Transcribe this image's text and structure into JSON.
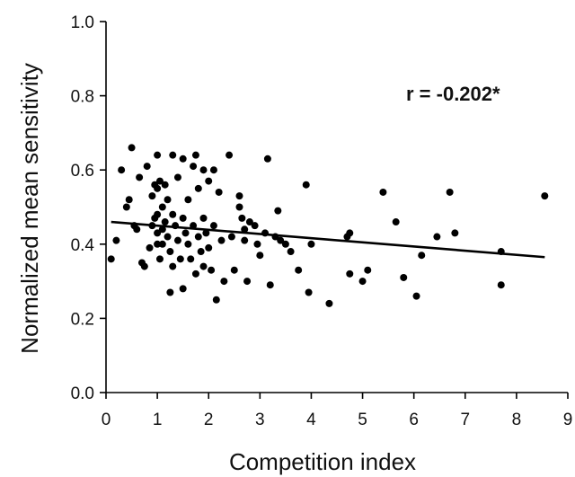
{
  "chart_data": {
    "type": "scatter",
    "title": "",
    "xlabel": "Competition index",
    "ylabel": "Normalized mean sensitivity",
    "xlim": [
      0,
      9
    ],
    "ylim": [
      0.0,
      1.0
    ],
    "x_ticks": [
      "0",
      "1",
      "2",
      "3",
      "4",
      "5",
      "6",
      "7",
      "8",
      "9"
    ],
    "y_ticks": [
      "0.0",
      "0.2",
      "0.4",
      "0.6",
      "0.8",
      "1.0"
    ],
    "grid": false,
    "annotation": "r = -0.202*",
    "series": [
      {
        "points": [
          [
            0.1,
            0.36
          ],
          [
            0.2,
            0.41
          ],
          [
            0.3,
            0.6
          ],
          [
            0.4,
            0.5
          ],
          [
            0.45,
            0.52
          ],
          [
            0.5,
            0.66
          ],
          [
            0.55,
            0.45
          ],
          [
            0.6,
            0.44
          ],
          [
            0.65,
            0.58
          ],
          [
            0.7,
            0.35
          ],
          [
            0.75,
            0.34
          ],
          [
            0.8,
            0.61
          ],
          [
            0.85,
            0.39
          ],
          [
            0.9,
            0.53
          ],
          [
            0.9,
            0.45
          ],
          [
            0.95,
            0.56
          ],
          [
            0.95,
            0.47
          ],
          [
            1.0,
            0.64
          ],
          [
            1.0,
            0.55
          ],
          [
            1.0,
            0.48
          ],
          [
            1.0,
            0.43
          ],
          [
            1.0,
            0.4
          ],
          [
            1.05,
            0.36
          ],
          [
            1.05,
            0.57
          ],
          [
            1.1,
            0.5
          ],
          [
            1.1,
            0.44
          ],
          [
            1.1,
            0.4
          ],
          [
            1.15,
            0.56
          ],
          [
            1.15,
            0.46
          ],
          [
            1.2,
            0.52
          ],
          [
            1.2,
            0.42
          ],
          [
            1.25,
            0.38
          ],
          [
            1.25,
            0.27
          ],
          [
            1.3,
            0.64
          ],
          [
            1.3,
            0.48
          ],
          [
            1.3,
            0.34
          ],
          [
            1.35,
            0.45
          ],
          [
            1.4,
            0.41
          ],
          [
            1.4,
            0.58
          ],
          [
            1.45,
            0.36
          ],
          [
            1.5,
            0.63
          ],
          [
            1.5,
            0.47
          ],
          [
            1.5,
            0.28
          ],
          [
            1.55,
            0.43
          ],
          [
            1.6,
            0.4
          ],
          [
            1.6,
            0.52
          ],
          [
            1.65,
            0.36
          ],
          [
            1.7,
            0.61
          ],
          [
            1.7,
            0.45
          ],
          [
            1.75,
            0.64
          ],
          [
            1.75,
            0.32
          ],
          [
            1.8,
            0.55
          ],
          [
            1.8,
            0.42
          ],
          [
            1.85,
            0.38
          ],
          [
            1.9,
            0.6
          ],
          [
            1.9,
            0.47
          ],
          [
            1.9,
            0.34
          ],
          [
            1.95,
            0.43
          ],
          [
            2.0,
            0.57
          ],
          [
            2.0,
            0.39
          ],
          [
            2.05,
            0.33
          ],
          [
            2.1,
            0.6
          ],
          [
            2.1,
            0.45
          ],
          [
            2.15,
            0.25
          ],
          [
            2.2,
            0.54
          ],
          [
            2.25,
            0.41
          ],
          [
            2.3,
            0.3
          ],
          [
            2.4,
            0.64
          ],
          [
            2.45,
            0.42
          ],
          [
            2.5,
            0.33
          ],
          [
            2.6,
            0.53
          ],
          [
            2.6,
            0.5
          ],
          [
            2.65,
            0.47
          ],
          [
            2.7,
            0.44
          ],
          [
            2.7,
            0.41
          ],
          [
            2.75,
            0.3
          ],
          [
            2.8,
            0.46
          ],
          [
            2.9,
            0.45
          ],
          [
            2.95,
            0.4
          ],
          [
            3.0,
            0.37
          ],
          [
            3.1,
            0.43
          ],
          [
            3.15,
            0.63
          ],
          [
            3.2,
            0.29
          ],
          [
            3.3,
            0.42
          ],
          [
            3.35,
            0.49
          ],
          [
            3.4,
            0.41
          ],
          [
            3.5,
            0.4
          ],
          [
            3.6,
            0.38
          ],
          [
            3.75,
            0.33
          ],
          [
            3.9,
            0.56
          ],
          [
            3.95,
            0.27
          ],
          [
            4.0,
            0.4
          ],
          [
            4.35,
            0.24
          ],
          [
            4.7,
            0.42
          ],
          [
            4.75,
            0.43
          ],
          [
            4.75,
            0.32
          ],
          [
            5.0,
            0.3
          ],
          [
            5.1,
            0.33
          ],
          [
            5.4,
            0.54
          ],
          [
            5.65,
            0.46
          ],
          [
            5.8,
            0.31
          ],
          [
            6.05,
            0.26
          ],
          [
            6.15,
            0.37
          ],
          [
            6.45,
            0.42
          ],
          [
            6.7,
            0.54
          ],
          [
            6.8,
            0.43
          ],
          [
            7.7,
            0.38
          ],
          [
            7.7,
            0.29
          ],
          [
            8.55,
            0.53
          ]
        ]
      }
    ],
    "fit_line": {
      "x": [
        0.1,
        8.55
      ],
      "y": [
        0.46,
        0.365
      ]
    }
  }
}
